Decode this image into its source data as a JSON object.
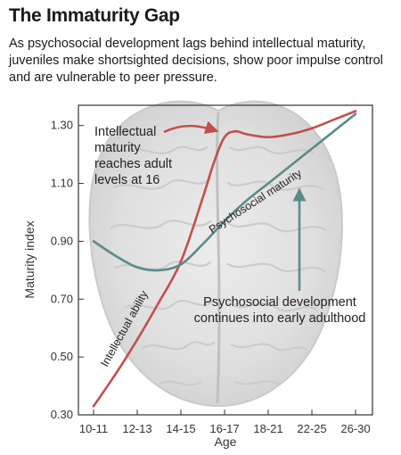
{
  "header": {
    "title": "The Immaturity Gap",
    "subtitle": "As psychosocial development lags behind intellectual maturity, juveniles make shortsighted decisions, show poor impulse control and are vulnerable to peer pressure."
  },
  "chart_data": {
    "type": "line",
    "xlabel": "Age",
    "ylabel": "Maturity index",
    "categories": [
      "10-11",
      "12-13",
      "14-15",
      "16-17",
      "18-21",
      "22-25",
      "26-30"
    ],
    "yticks": [
      "0.30",
      "0.50",
      "0.70",
      "0.90",
      "1.10",
      "1.30"
    ],
    "ylim": [
      0.3,
      1.37
    ],
    "grid": false,
    "series": [
      {
        "name": "Intellectual ability",
        "color": "#c0504d",
        "x": [
          0,
          0.5,
          1,
          1.5,
          2,
          2.5,
          2.75,
          3,
          3.25,
          3.5,
          4,
          4.5,
          5,
          5.5,
          6
        ],
        "values": [
          0.33,
          0.44,
          0.56,
          0.69,
          0.83,
          1.05,
          1.17,
          1.26,
          1.28,
          1.27,
          1.26,
          1.27,
          1.29,
          1.32,
          1.35
        ]
      },
      {
        "name": "Psychosocial maturity",
        "color": "#5b8a8a",
        "x": [
          0,
          0.5,
          1,
          1.5,
          2,
          2.5,
          3,
          3.5,
          4,
          4.5,
          5,
          5.5,
          6
        ],
        "values": [
          0.9,
          0.85,
          0.81,
          0.8,
          0.82,
          0.89,
          0.97,
          1.04,
          1.1,
          1.16,
          1.22,
          1.28,
          1.34
        ]
      }
    ],
    "annotations": [
      {
        "lines": [
          "Intellectual",
          "maturity",
          "reaches adult",
          "levels at 16"
        ],
        "color": "#c0504d"
      },
      {
        "lines": [
          "Psychosocial development",
          "continues into early adulthood"
        ],
        "color": "#5b8a8a"
      }
    ]
  }
}
